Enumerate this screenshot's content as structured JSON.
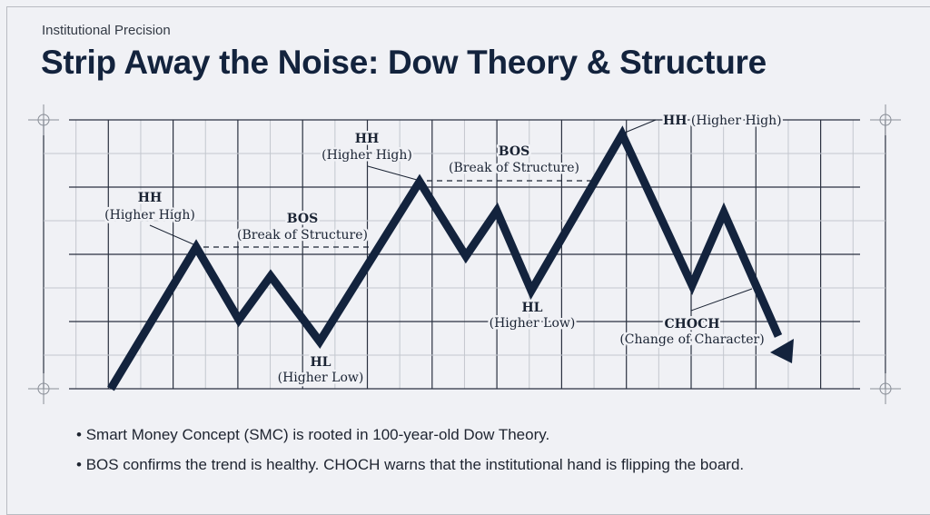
{
  "kicker": "Institutional Precision",
  "title": "Strip Away the Noise: Dow Theory & Structure",
  "labels": {
    "hh1": {
      "abbr": "HH",
      "full": "(Higher High)"
    },
    "bos1": {
      "abbr": "BOS",
      "full": "(Break of Structure)"
    },
    "hh2": {
      "abbr": "HH",
      "full": "(Higher High)"
    },
    "bos2": {
      "abbr": "BOS",
      "full": "(Break of Structure)"
    },
    "hh3": {
      "abbr": "HH",
      "full": "(Higher High)"
    },
    "hl1": {
      "abbr": "HL",
      "full": "(Higher Low)"
    },
    "hl2": {
      "abbr": "HL",
      "full": "(Higher Low)"
    },
    "choch": {
      "abbr": "CHOCH",
      "full": "(Change of Character)"
    }
  },
  "bullets": [
    "Smart Money Concept (SMC) is rooted in 100-year-old Dow Theory.",
    "BOS confirms the trend is healthy. CHOCH warns that the institutional hand is flipping the board."
  ],
  "colors": {
    "ink": "#13233d",
    "background": "#f0f1f5",
    "grid": "#2a3140"
  }
}
